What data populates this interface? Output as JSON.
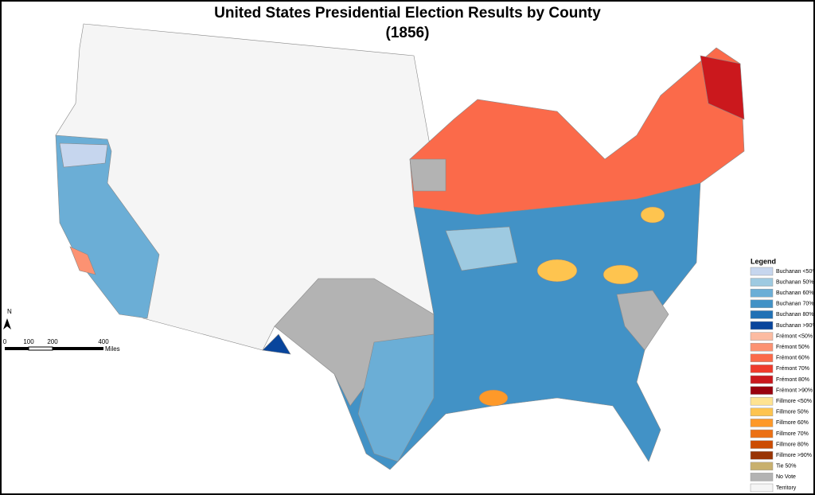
{
  "title": "United States Presidential Election Results by County",
  "subtitle": "(1856)",
  "legend": {
    "title": "Legend",
    "items": [
      {
        "label": "Buchanan <50%",
        "color": "#c6d6ee"
      },
      {
        "label": "Buchanan 50%",
        "color": "#9ecae1"
      },
      {
        "label": "Buchanan 60%",
        "color": "#6baed6"
      },
      {
        "label": "Buchanan 70%",
        "color": "#4292c6"
      },
      {
        "label": "Buchanan 80%",
        "color": "#2171b5"
      },
      {
        "label": "Buchanan >90%",
        "color": "#08459c"
      },
      {
        "label": "Frémont <50%",
        "color": "#fcbba1"
      },
      {
        "label": "Frémont 50%",
        "color": "#fc9272"
      },
      {
        "label": "Frémont 60%",
        "color": "#fb6a4a"
      },
      {
        "label": "Frémont 70%",
        "color": "#ef3b2c"
      },
      {
        "label": "Frémont 80%",
        "color": "#cb181d"
      },
      {
        "label": "Frémont >90%",
        "color": "#99000d"
      },
      {
        "label": "Fillmore <50%",
        "color": "#fee391"
      },
      {
        "label": "Fillmore 50%",
        "color": "#fec44f"
      },
      {
        "label": "Fillmore 60%",
        "color": "#fe9929"
      },
      {
        "label": "Fillmore 70%",
        "color": "#ec7014"
      },
      {
        "label": "Fillmore 80%",
        "color": "#cc4c02"
      },
      {
        "label": "Fillmore >90%",
        "color": "#993404"
      },
      {
        "label": "Tie 50%",
        "color": "#c8b06e"
      },
      {
        "label": "No Vote",
        "color": "#b3b3b3"
      },
      {
        "label": "Territory",
        "color": "#f5f5f5"
      }
    ]
  },
  "scale_bar": {
    "labels": [
      "0",
      "100",
      "200",
      "400"
    ],
    "unit": "Miles"
  },
  "north_arrow": "N"
}
